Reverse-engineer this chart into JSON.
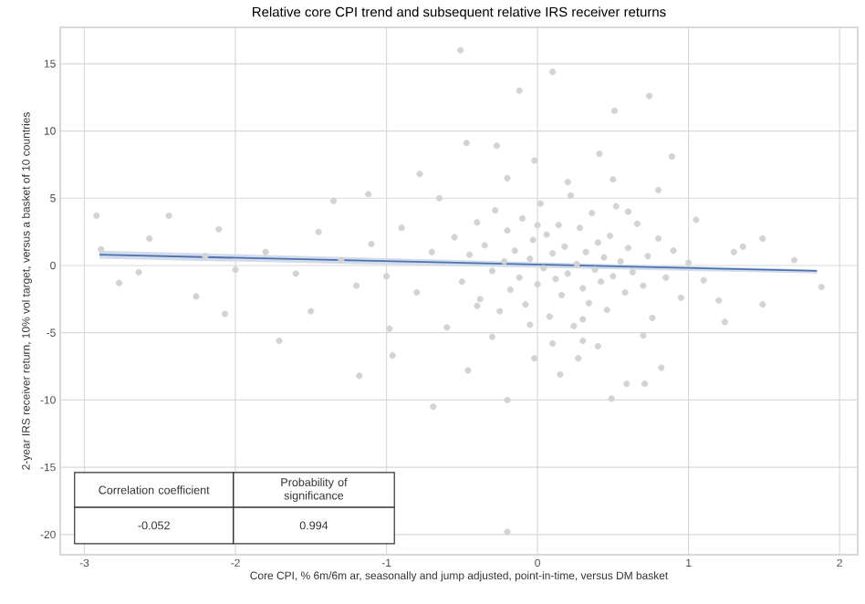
{
  "chart_data": {
    "type": "scatter",
    "title": "Relative core CPI trend and subsequent relative IRS receiver returns",
    "xlabel": "Core CPI, % 6m/6m ar, seasonally and jump adjusted, point-in-time, versus DM basket",
    "ylabel": "2-year IRS receiver return, 10% vol target, versus a basket of 10 countries",
    "xlim": [
      -3.16,
      2.12
    ],
    "ylim": [
      -21.5,
      17.7
    ],
    "xticks": [
      -3,
      -2,
      -1,
      0,
      1,
      2
    ],
    "yticks": [
      -20,
      -15,
      -10,
      -5,
      0,
      5,
      10,
      15
    ],
    "grid": true,
    "annotations": [
      "Correlation coefficient",
      "Probability of significance",
      "-0.052",
      "0.994"
    ],
    "series": [
      {
        "color": "#d3d3d3",
        "marker": "circle",
        "x": [
          -0.51,
          -0.12,
          0.1,
          0.74,
          0.51,
          -0.47,
          -0.27,
          0.89,
          0.41,
          -0.02,
          -2.92,
          -2.44,
          -2.57,
          -2.11,
          -1.12,
          -1.35,
          -0.78,
          -2.77,
          -2.64,
          -2.26,
          1.88,
          1.7,
          1.49,
          1.36,
          -2.89,
          -2.07,
          -1.71,
          -1.18,
          -0.69,
          -0.2,
          0.49,
          -0.2,
          -0.98,
          -0.96,
          -0.46,
          0.59,
          0.71,
          0.82,
          0.15,
          1.24,
          1.49,
          -0.02,
          0.27,
          0.3,
          -0.55,
          -0.5,
          -0.45,
          -0.4,
          -0.38,
          -0.35,
          -0.3,
          -0.28,
          -0.25,
          -0.22,
          -0.2,
          -0.18,
          -0.15,
          -0.12,
          -0.1,
          -0.08,
          -0.05,
          -0.03,
          0.0,
          0.02,
          0.04,
          0.06,
          0.08,
          0.1,
          0.12,
          0.14,
          0.16,
          0.18,
          0.2,
          0.22,
          0.24,
          0.26,
          0.28,
          0.3,
          0.32,
          0.34,
          0.36,
          0.38,
          0.4,
          0.42,
          0.44,
          0.46,
          0.48,
          0.5,
          0.52,
          0.55,
          0.58,
          0.6,
          0.63,
          0.66,
          0.7,
          0.73,
          0.76,
          0.8,
          0.85,
          0.9,
          0.95,
          1.0,
          1.05,
          1.1,
          -0.7,
          -0.8,
          -0.9,
          -1.0,
          -1.1,
          -1.2,
          -1.3,
          -1.45,
          -1.6,
          -1.8,
          -2.0,
          -2.2,
          -1.5,
          -0.6,
          -0.3,
          0.1,
          0.4,
          0.7,
          0.2,
          0.5,
          -0.2,
          0.8,
          -0.65,
          1.2,
          1.3,
          -0.05,
          0.3,
          0.6,
          0.0,
          -0.4
        ],
        "values": [
          16.0,
          13.0,
          14.4,
          12.6,
          11.5,
          9.1,
          8.9,
          8.1,
          8.3,
          7.8,
          3.7,
          3.7,
          2.0,
          2.7,
          5.3,
          4.8,
          6.8,
          -1.3,
          -0.5,
          -2.3,
          -1.6,
          0.4,
          2.0,
          1.4,
          1.2,
          -3.6,
          -5.6,
          -8.2,
          -10.5,
          -10.0,
          -9.9,
          -19.8,
          -4.7,
          -6.7,
          -7.8,
          -8.8,
          -8.8,
          -7.6,
          -8.1,
          -4.2,
          -2.9,
          -6.9,
          -6.9,
          -5.6,
          2.1,
          -1.2,
          0.8,
          3.2,
          -2.5,
          1.5,
          -0.4,
          4.1,
          -3.4,
          0.3,
          2.6,
          -1.8,
          1.1,
          -0.9,
          3.5,
          -2.9,
          0.5,
          1.9,
          -1.4,
          4.6,
          -0.2,
          2.3,
          -3.8,
          0.9,
          -1.0,
          3.0,
          -2.2,
          1.4,
          -0.6,
          5.2,
          -4.5,
          0.1,
          2.8,
          -1.7,
          1.0,
          -2.8,
          3.9,
          -0.3,
          1.7,
          -1.2,
          0.6,
          -3.3,
          2.2,
          -0.8,
          4.4,
          0.3,
          -2.0,
          1.3,
          -0.5,
          3.1,
          -1.5,
          0.7,
          -3.9,
          2.0,
          -0.9,
          1.1,
          -2.4,
          0.2,
          3.4,
          -1.1,
          1.0,
          -2.0,
          2.8,
          -0.8,
          1.6,
          -1.5,
          0.4,
          2.5,
          -0.6,
          1.0,
          -0.3,
          0.7,
          -3.4,
          -4.6,
          -5.3,
          -5.8,
          -6.0,
          -5.2,
          6.2,
          6.4,
          6.5,
          5.6,
          5.0,
          -2.6,
          1.0,
          -4.4,
          -4.0,
          4.0,
          3.0,
          -3.0
        ]
      },
      {
        "type": "line",
        "color": "#4c72b0",
        "x": [
          -2.9,
          1.85
        ],
        "values": [
          0.8,
          -0.4
        ],
        "lower": [
          0.5,
          -0.6
        ],
        "upper": [
          1.1,
          -0.3
        ]
      }
    ]
  }
}
